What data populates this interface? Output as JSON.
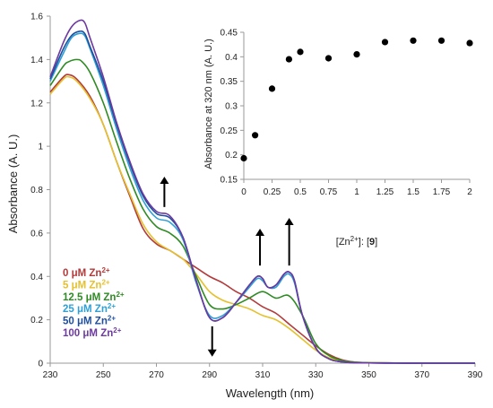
{
  "chart_data": [
    {
      "type": "line",
      "xlabel": "Wavelength (nm)",
      "ylabel": "Absorbance (A. U.)",
      "xlim": [
        230,
        390
      ],
      "ylim": [
        0,
        1.6
      ],
      "x_ticks": [
        "230",
        "250",
        "270",
        "290",
        "310",
        "330",
        "350",
        "370",
        "390"
      ],
      "y_ticks": [
        "0",
        "0.2",
        "0.4",
        "0.6",
        "0.8",
        "1",
        "1.2",
        "1.4",
        "1.6"
      ],
      "grid": false,
      "legend_position": "bottom-left",
      "legend": [
        {
          "num": "0",
          "unit": "μM Zn",
          "sup": "2+",
          "color": "#b33a3a"
        },
        {
          "num": "5",
          "unit": "μM Zn",
          "sup": "2+",
          "color": "#e5c12e"
        },
        {
          "num": "12.5",
          "unit": "μM Zn",
          "sup": "2+",
          "color": "#2e8b23"
        },
        {
          "num": "25",
          "unit": "μM Zn",
          "sup": "2+",
          "color": "#2ea0d6"
        },
        {
          "num": "50",
          "unit": "μM Zn",
          "sup": "2+",
          "color": "#1f4e9c"
        },
        {
          "num": "100",
          "unit": "μM Zn",
          "sup": "2+",
          "color": "#6d3aa0"
        }
      ],
      "series": [
        {
          "color": "#b33a3a",
          "x": [
            230,
            235,
            237,
            240,
            245,
            250,
            255,
            260,
            265,
            270,
            275,
            280,
            285,
            290,
            295,
            300,
            305,
            310,
            315,
            320,
            325,
            330,
            335,
            340,
            345,
            350,
            360,
            370,
            380,
            390
          ],
          "y": [
            1.25,
            1.32,
            1.33,
            1.31,
            1.23,
            1.1,
            0.93,
            0.77,
            0.62,
            0.55,
            0.52,
            0.48,
            0.44,
            0.4,
            0.37,
            0.33,
            0.3,
            0.26,
            0.23,
            0.18,
            0.13,
            0.08,
            0.04,
            0.015,
            0.005,
            0.002,
            0.001,
            0.0,
            0.0,
            0.0
          ]
        },
        {
          "color": "#e5c12e",
          "x": [
            230,
            235,
            237,
            240,
            245,
            250,
            255,
            260,
            265,
            270,
            275,
            280,
            285,
            290,
            295,
            300,
            305,
            310,
            315,
            320,
            325,
            330,
            335,
            340,
            345,
            350,
            360,
            370,
            380,
            390
          ],
          "y": [
            1.24,
            1.31,
            1.32,
            1.3,
            1.22,
            1.1,
            0.93,
            0.78,
            0.64,
            0.56,
            0.52,
            0.48,
            0.41,
            0.33,
            0.29,
            0.27,
            0.25,
            0.22,
            0.2,
            0.16,
            0.11,
            0.06,
            0.025,
            0.01,
            0.004,
            0.002,
            0.001,
            0.0,
            0.0,
            0.0
          ]
        },
        {
          "color": "#2e8b23",
          "x": [
            230,
            235,
            237,
            240,
            242,
            245,
            250,
            255,
            260,
            265,
            270,
            275,
            280,
            285,
            290,
            295,
            300,
            305,
            310,
            315,
            320,
            325,
            330,
            335,
            340,
            345,
            350,
            360,
            370,
            380,
            390
          ],
          "y": [
            1.28,
            1.37,
            1.39,
            1.4,
            1.39,
            1.34,
            1.2,
            1.02,
            0.85,
            0.71,
            0.63,
            0.6,
            0.54,
            0.4,
            0.27,
            0.25,
            0.27,
            0.3,
            0.33,
            0.3,
            0.31,
            0.22,
            0.09,
            0.035,
            0.012,
            0.004,
            0.002,
            0.001,
            0.0,
            0.0,
            0.0
          ]
        },
        {
          "color": "#2ea0d6",
          "x": [
            230,
            235,
            238,
            241,
            243,
            245,
            250,
            255,
            260,
            265,
            270,
            275,
            280,
            285,
            290,
            295,
            300,
            305,
            308,
            310,
            312,
            315,
            318,
            320,
            322,
            325,
            330,
            335,
            340,
            345,
            350,
            360,
            370,
            380,
            390
          ],
          "y": [
            1.3,
            1.43,
            1.5,
            1.52,
            1.51,
            1.45,
            1.28,
            1.08,
            0.9,
            0.75,
            0.67,
            0.65,
            0.57,
            0.37,
            0.22,
            0.22,
            0.28,
            0.35,
            0.39,
            0.38,
            0.35,
            0.35,
            0.4,
            0.41,
            0.37,
            0.22,
            0.07,
            0.02,
            0.006,
            0.002,
            0.001,
            0.0,
            0.0,
            0.0,
            0.0
          ]
        },
        {
          "color": "#1f4e9c",
          "x": [
            230,
            235,
            238,
            241,
            243,
            245,
            250,
            255,
            260,
            265,
            270,
            275,
            280,
            285,
            290,
            295,
            300,
            305,
            308,
            310,
            312,
            315,
            318,
            320,
            322,
            325,
            330,
            335,
            340,
            345,
            350,
            360,
            370,
            380,
            390
          ],
          "y": [
            1.31,
            1.45,
            1.51,
            1.53,
            1.52,
            1.46,
            1.3,
            1.1,
            0.92,
            0.77,
            0.69,
            0.67,
            0.58,
            0.38,
            0.21,
            0.21,
            0.28,
            0.36,
            0.4,
            0.39,
            0.35,
            0.36,
            0.41,
            0.42,
            0.38,
            0.22,
            0.07,
            0.02,
            0.006,
            0.002,
            0.001,
            0.0,
            0.0,
            0.0,
            0.0
          ]
        },
        {
          "color": "#6d3aa0",
          "x": [
            230,
            235,
            238,
            241,
            243,
            245,
            250,
            255,
            260,
            265,
            270,
            275,
            280,
            285,
            290,
            295,
            300,
            305,
            308,
            310,
            312,
            315,
            318,
            320,
            322,
            325,
            330,
            335,
            340,
            345,
            350,
            360,
            370,
            380,
            390
          ],
          "y": [
            1.32,
            1.48,
            1.55,
            1.58,
            1.57,
            1.5,
            1.32,
            1.11,
            0.93,
            0.78,
            0.7,
            0.68,
            0.58,
            0.38,
            0.21,
            0.21,
            0.28,
            0.36,
            0.4,
            0.39,
            0.35,
            0.36,
            0.41,
            0.42,
            0.38,
            0.22,
            0.07,
            0.02,
            0.006,
            0.002,
            0.001,
            0.0,
            0.0,
            0.0,
            0.0
          ]
        }
      ],
      "arrows": [
        {
          "x": 273,
          "y_from": 0.72,
          "y_to": 0.86,
          "direction": "up"
        },
        {
          "x": 291,
          "y_from": 0.17,
          "y_to": 0.03,
          "direction": "down"
        },
        {
          "x": 309,
          "y_from": 0.45,
          "y_to": 0.62,
          "direction": "up"
        },
        {
          "x": 320,
          "y_from": 0.45,
          "y_to": 0.67,
          "direction": "up"
        }
      ]
    },
    {
      "type": "scatter",
      "xlabel_parts": [
        "[Zn",
        "2+",
        "]: [",
        "9",
        "]"
      ],
      "ylabel": "Absorbance at 320 nm (A. U.)",
      "xlim": [
        0,
        2
      ],
      "ylim": [
        0.15,
        0.45
      ],
      "x_ticks": [
        "0",
        "0.25",
        "0.5",
        "0.75",
        "1",
        "1.25",
        "1.5",
        "1.75",
        "2"
      ],
      "y_ticks": [
        "0.15",
        "0.2",
        "0.25",
        "0.3",
        "0.35",
        "0.4",
        "0.45"
      ],
      "grid": false,
      "legend_position": "none",
      "x": [
        0,
        0.1,
        0.25,
        0.4,
        0.5,
        0.75,
        1.0,
        1.25,
        1.5,
        1.75,
        2.0
      ],
      "y": [
        0.193,
        0.24,
        0.335,
        0.395,
        0.41,
        0.397,
        0.405,
        0.43,
        0.433,
        0.433,
        0.428
      ],
      "marker_color": "#000000"
    }
  ]
}
